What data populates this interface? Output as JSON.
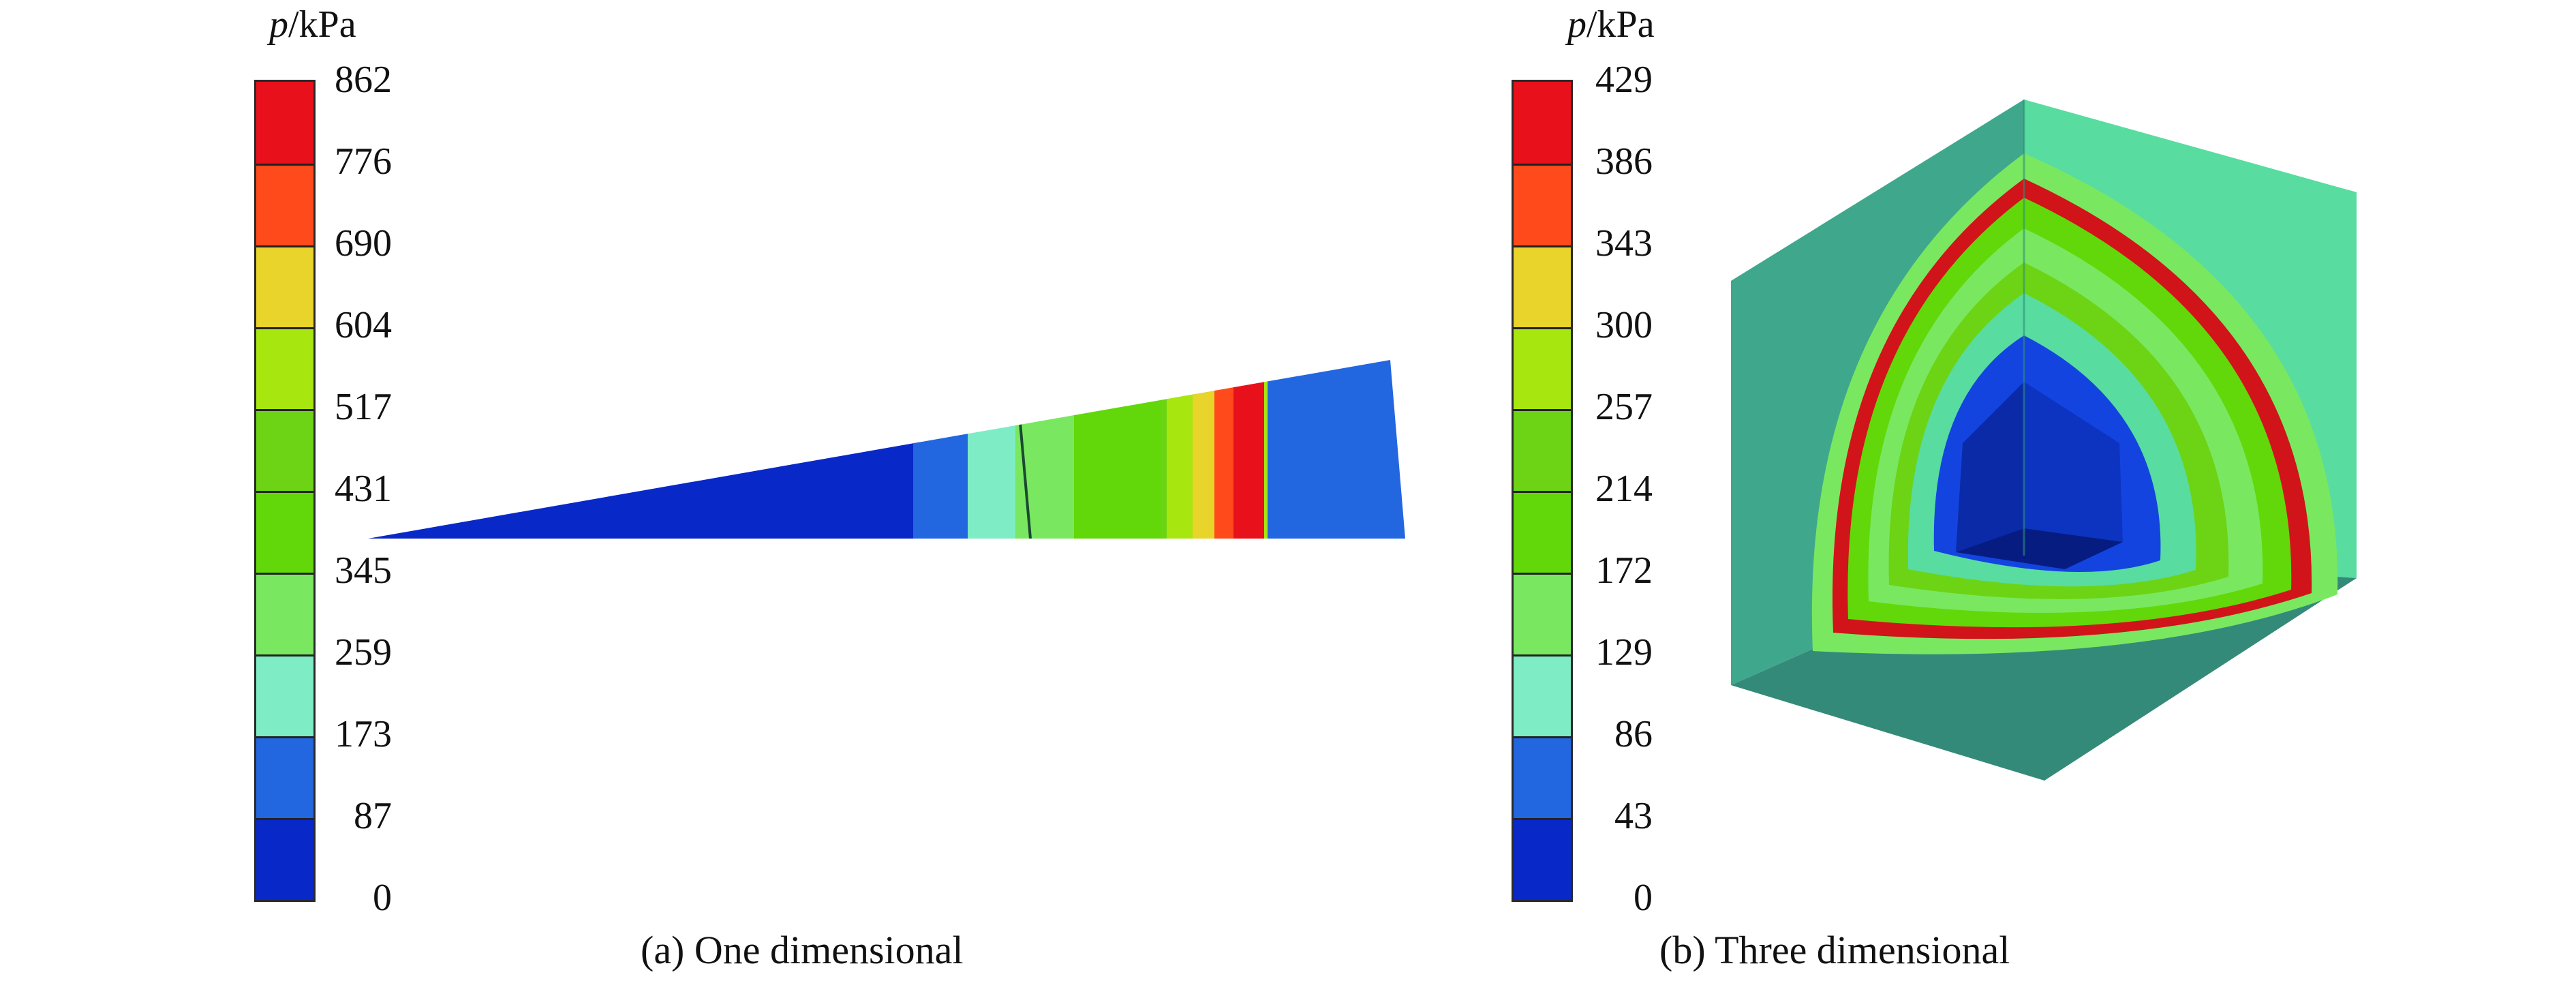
{
  "panels": [
    {
      "id": "a",
      "caption": "(a) One dimensional",
      "colorbar": {
        "unit_symbol": "p",
        "unit_suffix": "/kPa",
        "ticks": [
          "862",
          "776",
          "690",
          "604",
          "517",
          "431",
          "345",
          "259",
          "173",
          "87",
          "0"
        ]
      }
    },
    {
      "id": "b",
      "caption": "(b) Three dimensional",
      "colorbar": {
        "unit_symbol": "p",
        "unit_suffix": "/kPa",
        "ticks": [
          "429",
          "386",
          "343",
          "300",
          "257",
          "214",
          "172",
          "129",
          "86",
          "43",
          "0"
        ]
      }
    }
  ],
  "colormap": [
    "#e8101a",
    "#ff4a1c",
    "#e8d42a",
    "#a8e610",
    "#6cd414",
    "#62d80a",
    "#79e860",
    "#7eecc4",
    "#2266e0",
    "#0828c8"
  ],
  "colors": {
    "wedge_dark_blue": "#0828c8",
    "cube_face_light": "#58dca0",
    "cube_face_mid": "#3fa88c",
    "cube_face_dark": "#348a78"
  }
}
